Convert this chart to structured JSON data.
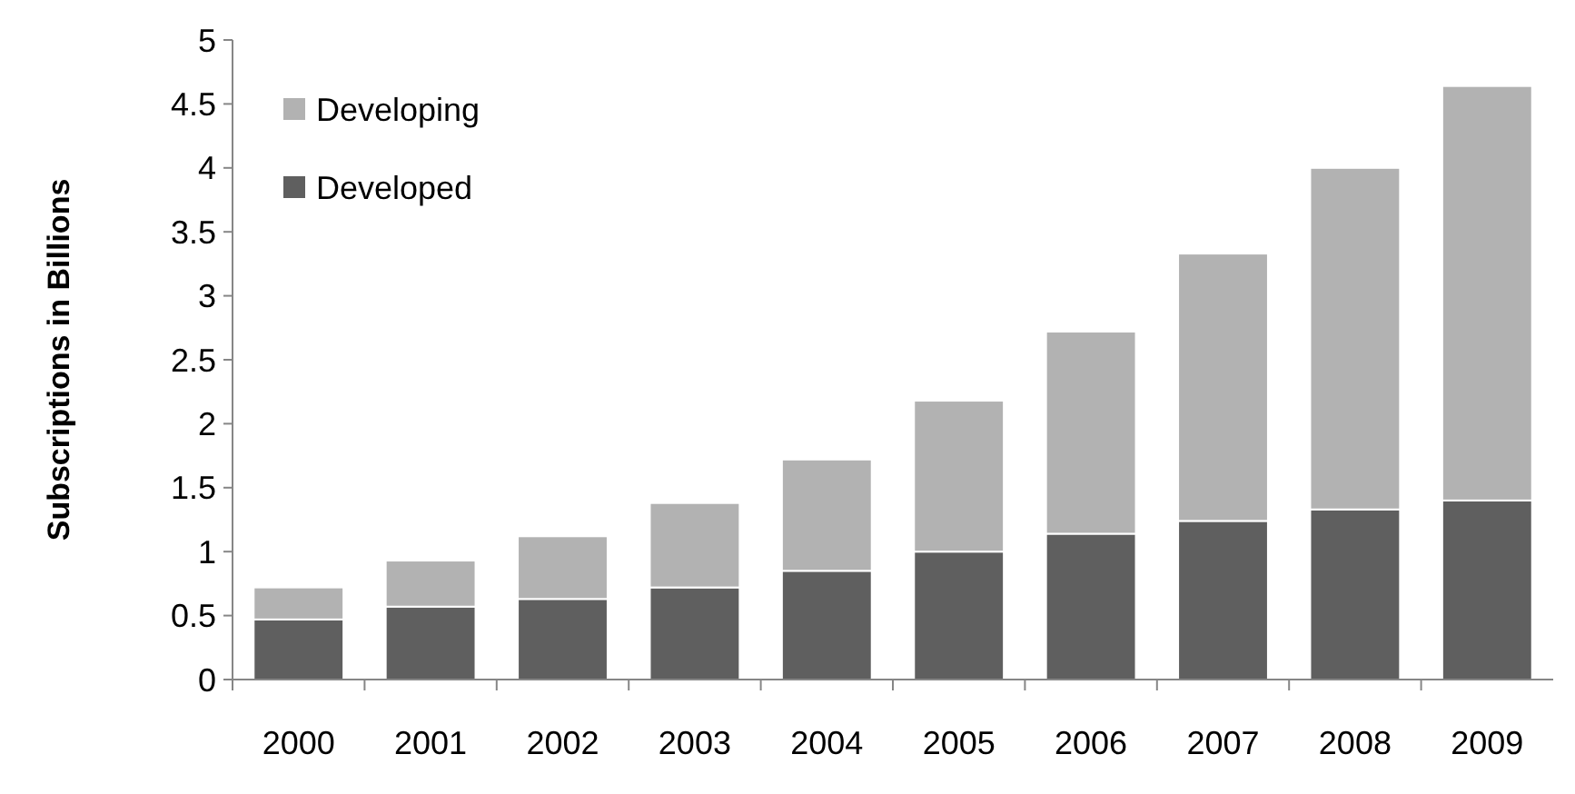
{
  "chart_data": {
    "type": "bar",
    "stacked": true,
    "ylabel": "Subscriptions in Billions",
    "categories": [
      "2000",
      "2001",
      "2002",
      "2003",
      "2004",
      "2005",
      "2006",
      "2007",
      "2008",
      "2009"
    ],
    "series": [
      {
        "name": "Developed",
        "color": "#5f5f5f",
        "values": [
          0.47,
          0.57,
          0.63,
          0.72,
          0.85,
          1.0,
          1.14,
          1.24,
          1.33,
          1.4
        ]
      },
      {
        "name": "Developing",
        "color": "#b2b2b2",
        "values": [
          0.25,
          0.36,
          0.49,
          0.66,
          0.87,
          1.18,
          1.58,
          2.09,
          2.67,
          3.24
        ]
      }
    ],
    "ylim": [
      0,
      5
    ],
    "yticks": [
      0,
      0.5,
      1,
      1.5,
      2,
      2.5,
      3,
      3.5,
      4,
      4.5,
      5
    ],
    "grid": false,
    "legend": "top left"
  }
}
